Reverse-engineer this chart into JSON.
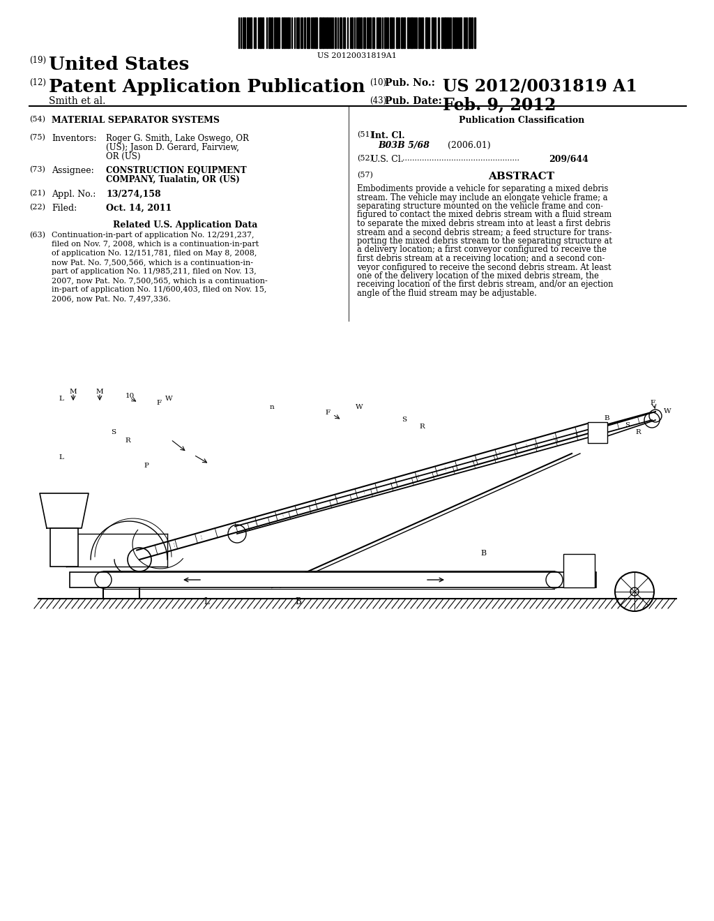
{
  "background_color": "#ffffff",
  "barcode_text": "US 20120031819A1",
  "header": {
    "num19": "(19)",
    "united_states": "United States",
    "num12": "(12)",
    "patent_app_pub": "Patent Application Publication",
    "smith_et_al": "Smith et al.",
    "num10": "(10)",
    "pub_no_label": "Pub. No.:",
    "pub_no_value": "US 2012/0031819 A1",
    "num43": "(43)",
    "pub_date_label": "Pub. Date:",
    "pub_date_value": "Feb. 9, 2012"
  },
  "left_col": {
    "num54": "(54)",
    "title": "MATERIAL SEPARATOR SYSTEMS",
    "num75": "(75)",
    "inventors_label": "Inventors:",
    "inv_line1": "Roger G. Smith, Lake Oswego, OR",
    "inv_line2": "(US); Jason D. Gerard, Fairview,",
    "inv_line3": "OR (US)",
    "num73": "(73)",
    "assignee_label": "Assignee:",
    "asgn_line1": "CONSTRUCTION EQUIPMENT",
    "asgn_line2": "COMPANY, Tualatin, OR (US)",
    "num21": "(21)",
    "appl_no_label": "Appl. No.:",
    "appl_no_value": "13/274,158",
    "num22": "(22)",
    "filed_label": "Filed:",
    "filed_value": "Oct. 14, 2011",
    "related_header": "Related U.S. Application Data",
    "num63": "(63)",
    "rel_line1": "Continuation-in-part of application No. 12/291,237,",
    "rel_line2": "filed on Nov. 7, 2008, which is a continuation-in-part",
    "rel_line3": "of application No. 12/151,781, filed on May 8, 2008,",
    "rel_line4": "now Pat. No. 7,500,566, which is a continuation-in-",
    "rel_line5": "part of application No. 11/985,211, filed on Nov. 13,",
    "rel_line6": "2007, now Pat. No. 7,500,565, which is a continuation-",
    "rel_line7": "in-part of application No. 11/600,403, filed on Nov. 15,",
    "rel_line8": "2006, now Pat. No. 7,497,336."
  },
  "right_col": {
    "pub_class_header": "Publication Classification",
    "num51": "(51)",
    "int_cl_label": "Int. Cl.",
    "int_cl_value": "B03B 5/68",
    "int_cl_year": "(2006.01)",
    "num52": "(52)",
    "us_cl_label": "U.S. Cl.",
    "us_cl_value": "209/644",
    "num57": "(57)",
    "abstract_header": "ABSTRACT",
    "abs_line1": "Embodiments provide a vehicle for separating a mixed debris",
    "abs_line2": "stream. The vehicle may include an elongate vehicle frame; a",
    "abs_line3": "separating structure mounted on the vehicle frame and con-",
    "abs_line4": "figured to contact the mixed debris stream with a fluid stream",
    "abs_line5": "to separate the mixed debris stream into at least a first debris",
    "abs_line6": "stream and a second debris stream; a feed structure for trans-",
    "abs_line7": "porting the mixed debris stream to the separating structure at",
    "abs_line8": "a delivery location; a first conveyor configured to receive the",
    "abs_line9": "first debris stream at a receiving location; and a second con-",
    "abs_line10": "veyor configured to receive the second debris stream. At least",
    "abs_line11": "one of the delivery location of the mixed debris stream, the",
    "abs_line12": "receiving location of the first debris stream, and/or an ejection",
    "abs_line13": "angle of the fluid stream may be adjustable."
  }
}
